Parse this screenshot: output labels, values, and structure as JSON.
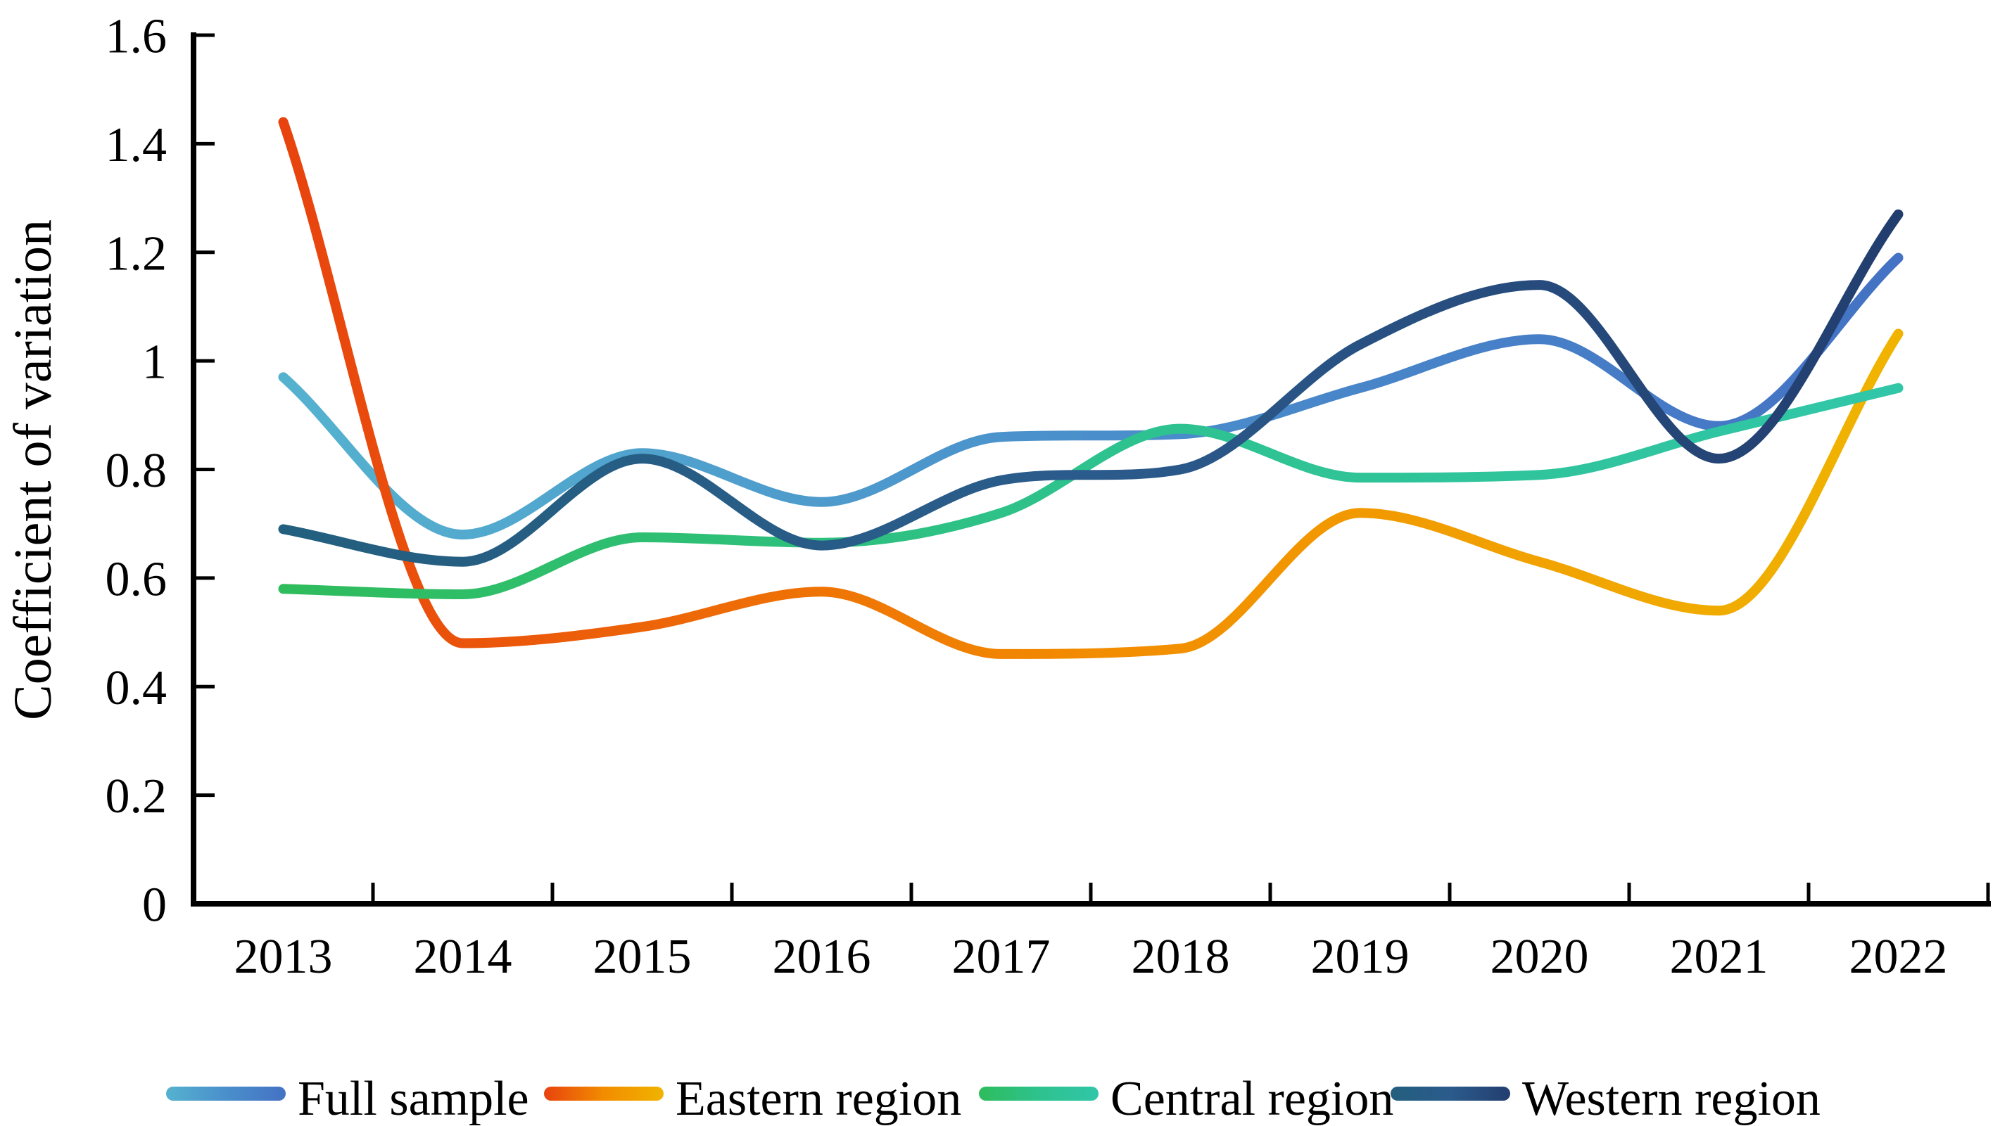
{
  "chart_data": {
    "type": "line",
    "title": "",
    "xlabel": "",
    "ylabel": "Coefficient of variation",
    "categories": [
      "2013",
      "2014",
      "2015",
      "2016",
      "2017",
      "2018",
      "2019",
      "2020",
      "2021",
      "2022"
    ],
    "y_ticks": [
      0,
      0.2,
      0.4,
      0.6,
      0.8,
      1,
      1.2,
      1.4,
      1.6
    ],
    "y_tick_labels": [
      "0",
      "0.2",
      "0.4",
      "0.6",
      "0.8",
      "1",
      "1.2",
      "1.4",
      "1.6"
    ],
    "ylim": [
      0,
      1.6
    ],
    "grid": false,
    "legend_position": "bottom",
    "axis_color": "#000000",
    "text_color": "#000000",
    "series": [
      {
        "name": "Full sample",
        "values": [
          0.97,
          0.68,
          0.83,
          0.74,
          0.86,
          0.865,
          0.95,
          1.04,
          0.88,
          1.19
        ],
        "gradient": [
          "#55B2CF",
          "#4A8FCB",
          "#4472C4"
        ]
      },
      {
        "name": "Eastern region",
        "values": [
          1.44,
          0.48,
          0.51,
          0.575,
          0.46,
          0.47,
          0.72,
          0.63,
          0.54,
          1.05
        ],
        "gradient": [
          "#E8430E",
          "#F28C00",
          "#F0B400"
        ]
      },
      {
        "name": "Central region",
        "values": [
          0.58,
          0.57,
          0.675,
          0.665,
          0.72,
          0.875,
          0.785,
          0.79,
          0.87,
          0.95
        ],
        "gradient": [
          "#2FBC5C",
          "#2EC28E",
          "#31C6A8"
        ]
      },
      {
        "name": "Western region",
        "values": [
          0.69,
          0.63,
          0.82,
          0.66,
          0.78,
          0.8,
          1.03,
          1.14,
          0.82,
          1.27
        ],
        "gradient": [
          "#235F7E",
          "#2B5B8C",
          "#223E6F"
        ]
      }
    ]
  }
}
